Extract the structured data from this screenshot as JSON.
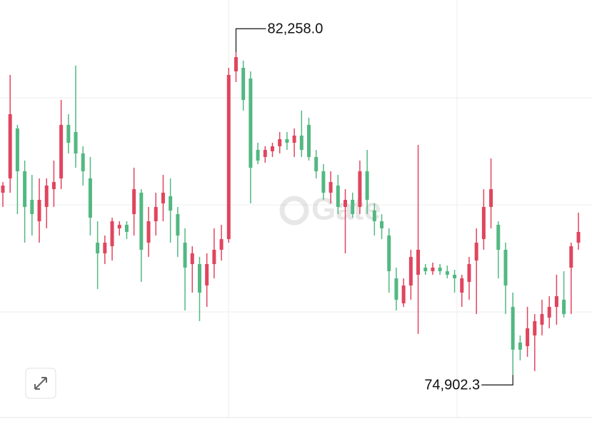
{
  "chart_data": {
    "type": "candlestick",
    "up_color": "#e0455e",
    "down_color": "#52b882",
    "ylim": [
      73930,
      83450
    ],
    "high_label": "82,258.0",
    "low_label": "74,902.3",
    "watermark": "Gate",
    "open": [
      79057,
      79383,
      80521,
      79545,
      78894,
      78406,
      78732,
      79138,
      79383,
      80603,
      80440,
      79952,
      79383,
      77918,
      77674,
      77837,
      78244,
      78325,
      78569,
      79057,
      77918,
      78406,
      78813,
      78976,
      78569,
      77918,
      77430,
      77430,
      76942,
      77430,
      77756,
      77999,
      81823,
      81904,
      81660,
      80033,
      79871,
      80001,
      80115,
      80277,
      80196,
      80359,
      80603,
      79871,
      79545,
      79057,
      79220,
      78732,
      78894,
      78732,
      79545,
      78650,
      78406,
      78081,
      77105,
      76535,
      76942,
      77186,
      77349,
      77267,
      77349,
      77267,
      77186,
      76779,
      77023,
      77511,
      77999,
      78732,
      78325,
      77756,
      76454,
      75640,
      75559,
      75803,
      76047,
      76210,
      76454,
      76617,
      77349,
      77918
    ],
    "high": [
      79301,
      81742,
      80603,
      79789,
      79464,
      79383,
      79383,
      79789,
      81172,
      80847,
      81953,
      80115,
      79871,
      78406,
      78081,
      78488,
      78406,
      78406,
      79627,
      79138,
      78732,
      79057,
      79464,
      79383,
      78732,
      78244,
      77837,
      77593,
      77674,
      78244,
      78325,
      81904,
      82258.0,
      82067,
      81823,
      80196,
      80115,
      80196,
      80440,
      80440,
      80521,
      80928,
      80765,
      80033,
      79708,
      79545,
      79464,
      79138,
      79057,
      79789,
      80033,
      78813,
      78569,
      78244,
      77349,
      77105,
      77756,
      80147,
      77430,
      77463,
      77430,
      77398,
      77300,
      77186,
      77593,
      78244,
      79138,
      79838,
      78406,
      77918,
      76779,
      75803,
      76454,
      76291,
      76617,
      76698,
      77186,
      77267,
      77918,
      78602
    ],
    "low": [
      78732,
      79057,
      78569,
      77918,
      78081,
      77918,
      78244,
      78732,
      79138,
      79952,
      79627,
      79220,
      78081,
      76861,
      77430,
      77511,
      78081,
      77999,
      78081,
      77023,
      77593,
      78081,
      78406,
      77918,
      77593,
      76373,
      76779,
      76129,
      76454,
      77105,
      77511,
      77918,
      81579,
      80928,
      78813,
      79708,
      79740,
      79871,
      79952,
      80033,
      79871,
      79871,
      79789,
      79383,
      78894,
      78813,
      78569,
      77674,
      78488,
      78569,
      78569,
      78081,
      77999,
      76779,
      76373,
      76454,
      76617,
      75836,
      77186,
      77186,
      77186,
      77105,
      76779,
      76454,
      76617,
      76291,
      77756,
      78244,
      77105,
      76291,
      74902.3,
      75234,
      75315,
      74990,
      75803,
      75966,
      76047,
      76210,
      76291,
      77756
    ],
    "close": [
      79220,
      80847,
      79545,
      78732,
      78569,
      78894,
      79220,
      79301,
      80603,
      80196,
      79952,
      79545,
      78488,
      77674,
      77918,
      78406,
      78325,
      78162,
      79138,
      77756,
      78406,
      78732,
      79057,
      78650,
      78081,
      77349,
      77674,
      76779,
      77430,
      77756,
      77999,
      81742,
      82148,
      81172,
      79627,
      79789,
      80033,
      80115,
      80277,
      80196,
      80359,
      80033,
      79871,
      79545,
      79057,
      79301,
      78732,
      78894,
      78569,
      79545,
      78894,
      78406,
      78244,
      77267,
      76617,
      76942,
      77593,
      77756,
      77267,
      77349,
      77267,
      77186,
      77105,
      77105,
      77430,
      77918,
      78732,
      79138,
      77756,
      76942,
      75478,
      75478,
      75966,
      76129,
      76291,
      76454,
      76698,
      76291,
      77837,
      78162
    ]
  }
}
